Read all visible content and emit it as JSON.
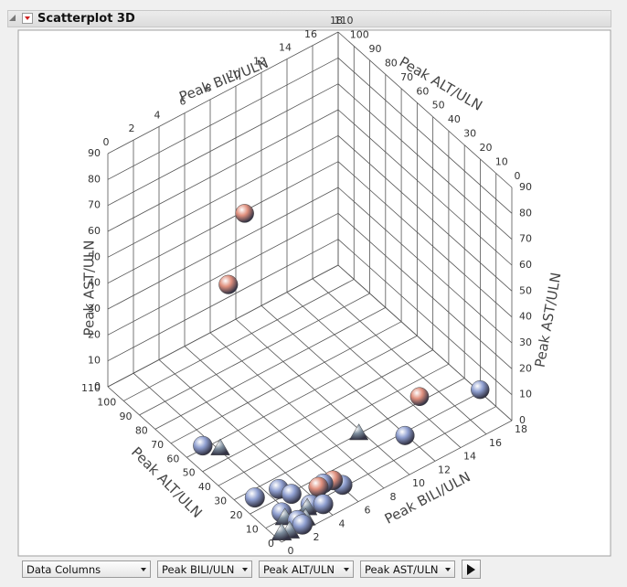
{
  "header": {
    "title": "Scatterplot 3D"
  },
  "controls": [
    "Data Columns",
    "Peak BILI/ULN",
    "Peak ALT/ULN",
    "Peak AST/ULN"
  ],
  "chart_data": {
    "type": "scatter3d",
    "x_label": "Peak BILI/ULN",
    "y_label": "Peak ALT/ULN",
    "z_label": "Peak AST/ULN",
    "xlim": [
      0,
      18
    ],
    "ylim": [
      0,
      110
    ],
    "zlim": [
      0,
      90
    ],
    "xticks": [
      0,
      2,
      4,
      6,
      8,
      10,
      12,
      14,
      16,
      18
    ],
    "yticks": [
      0,
      10,
      20,
      30,
      40,
      50,
      60,
      70,
      80,
      90,
      100,
      110
    ],
    "zticks": [
      0,
      10,
      20,
      30,
      40,
      50,
      60,
      70,
      80,
      90
    ],
    "series": [
      {
        "color": "#8f9fd0",
        "marker": "sphere",
        "x": [
          17,
          11.5,
          1,
          2.5,
          3,
          1.5,
          5,
          4,
          2,
          6,
          3.5,
          1,
          2
        ],
        "y": [
          12,
          15,
          58,
          22,
          18,
          12,
          14,
          6,
          6,
          10,
          10,
          25,
          3
        ],
        "z": [
          8,
          3,
          3,
          2,
          1,
          1,
          2,
          1,
          0,
          1,
          0,
          1,
          0
        ]
      },
      {
        "color": "#e0907e",
        "marker": "sphere",
        "x": [
          6,
          3,
          13.5,
          4,
          5.5
        ],
        "y": [
          72,
          58,
          22,
          9,
          12
        ],
        "z": [
          72,
          60,
          9,
          6,
          3
        ]
      },
      {
        "color": "#7c8c9c",
        "marker": "triangle",
        "x": [
          2,
          9.5,
          1.5,
          2.5,
          1,
          3,
          0.5
        ],
        "y": [
          55,
          28,
          10,
          5,
          3,
          8,
          4
        ],
        "z": [
          1,
          2,
          0,
          0,
          0,
          1,
          0
        ]
      }
    ]
  }
}
